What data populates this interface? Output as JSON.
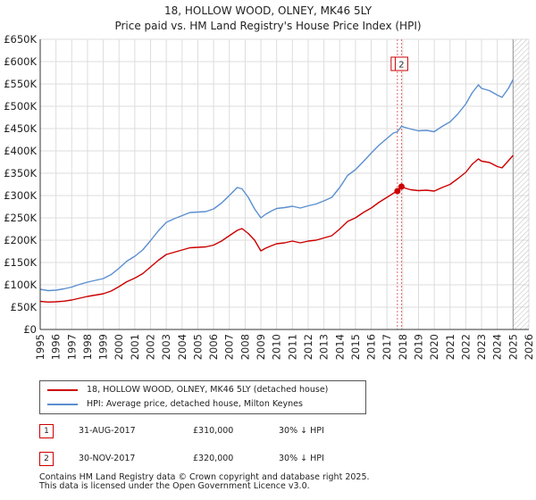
{
  "title_line1": "18, HOLLOW WOOD, OLNEY, MK46 5LY",
  "title_line2": "Price paid vs. HM Land Registry's House Price Index (HPI)",
  "chart_data": {
    "type": "line",
    "xlim": [
      1995,
      2026
    ],
    "ylim": [
      0,
      650000
    ],
    "y_ticks": [
      0,
      50000,
      100000,
      150000,
      200000,
      250000,
      300000,
      350000,
      400000,
      450000,
      500000,
      550000,
      600000,
      650000
    ],
    "y_tick_labels": [
      "£0",
      "£50K",
      "£100K",
      "£150K",
      "£200K",
      "£250K",
      "£300K",
      "£350K",
      "£400K",
      "£450K",
      "£500K",
      "£550K",
      "£600K",
      "£650K"
    ],
    "x_ticks": [
      1995,
      1996,
      1997,
      1998,
      1999,
      2000,
      2001,
      2002,
      2003,
      2004,
      2005,
      2006,
      2007,
      2008,
      2009,
      2010,
      2011,
      2012,
      2013,
      2014,
      2015,
      2016,
      2017,
      2018,
      2019,
      2020,
      2021,
      2022,
      2023,
      2024,
      2025,
      2026
    ],
    "x_tick_labels": [
      "1995",
      "1996",
      "1997",
      "1998",
      "1999",
      "2000",
      "2001",
      "2002",
      "2003",
      "2004",
      "2005",
      "2006",
      "2007",
      "2008",
      "2009",
      "2010",
      "2011",
      "2012",
      "2013",
      "2014",
      "2015",
      "2016",
      "2017",
      "2018",
      "2019",
      "2020",
      "2021",
      "2022",
      "2023",
      "2024",
      "2025",
      "2026"
    ],
    "grid": true,
    "hatch_from": 2025.0,
    "series": [
      {
        "name": "18, HOLLOW WOOD, OLNEY, MK46 5LY (detached house)",
        "color": "#cc0000",
        "x": [
          1995.0,
          1995.5,
          1996.0,
          1996.5,
          1997.0,
          1997.5,
          1998.0,
          1998.5,
          1999.0,
          1999.5,
          2000.0,
          2000.5,
          2001.0,
          2001.5,
          2002.0,
          2002.5,
          2003.0,
          2003.5,
          2004.0,
          2004.5,
          2005.0,
          2005.5,
          2006.0,
          2006.5,
          2007.0,
          2007.5,
          2007.8,
          2008.2,
          2008.6,
          2009.0,
          2009.3,
          2009.7,
          2010.0,
          2010.5,
          2011.0,
          2011.5,
          2012.0,
          2012.5,
          2013.0,
          2013.5,
          2014.0,
          2014.5,
          2015.0,
          2015.5,
          2016.0,
          2016.5,
          2017.0,
          2017.4,
          2017.66,
          2017.92,
          2018.2,
          2018.5,
          2019.0,
          2019.5,
          2020.0,
          2020.5,
          2021.0,
          2021.5,
          2022.0,
          2022.4,
          2022.8,
          2023.0,
          2023.5,
          2024.0,
          2024.3,
          2024.7,
          2025.0
        ],
        "y": [
          63000,
          61500,
          62000,
          63500,
          66000,
          70000,
          74000,
          77000,
          80000,
          86000,
          96000,
          107000,
          115000,
          125000,
          140000,
          155000,
          168000,
          173000,
          178000,
          183000,
          184000,
          185000,
          189000,
          198000,
          210000,
          222000,
          226000,
          215000,
          200000,
          176000,
          182000,
          188000,
          192000,
          194000,
          198000,
          194000,
          198000,
          200000,
          205000,
          210000,
          225000,
          242000,
          250000,
          262000,
          272000,
          285000,
          296000,
          305000,
          310000,
          320000,
          316000,
          313000,
          311000,
          312000,
          310000,
          318000,
          325000,
          338000,
          352000,
          370000,
          382000,
          377000,
          374000,
          365000,
          362000,
          378000,
          390000
        ]
      },
      {
        "name": "HPI: Average price, detached house, Milton Keynes",
        "color": "#5b8fd0",
        "x": [
          1995.0,
          1995.5,
          1996.0,
          1996.5,
          1997.0,
          1997.5,
          1998.0,
          1998.5,
          1999.0,
          1999.5,
          2000.0,
          2000.5,
          2001.0,
          2001.5,
          2002.0,
          2002.5,
          2003.0,
          2003.5,
          2004.0,
          2004.5,
          2005.0,
          2005.5,
          2006.0,
          2006.5,
          2007.0,
          2007.5,
          2007.8,
          2008.2,
          2008.6,
          2009.0,
          2009.3,
          2009.7,
          2010.0,
          2010.5,
          2011.0,
          2011.5,
          2012.0,
          2012.5,
          2013.0,
          2013.5,
          2014.0,
          2014.5,
          2015.0,
          2015.5,
          2016.0,
          2016.5,
          2017.0,
          2017.4,
          2017.66,
          2017.92,
          2018.2,
          2018.5,
          2019.0,
          2019.5,
          2020.0,
          2020.5,
          2021.0,
          2021.5,
          2022.0,
          2022.4,
          2022.8,
          2023.0,
          2023.5,
          2024.0,
          2024.3,
          2024.7,
          2025.0
        ],
        "y": [
          90000,
          87000,
          88000,
          91000,
          95000,
          101000,
          106000,
          110000,
          114000,
          123000,
          137000,
          153000,
          164000,
          178000,
          199000,
          221000,
          240000,
          248000,
          255000,
          262000,
          263000,
          264000,
          270000,
          283000,
          300000,
          318000,
          315000,
          296000,
          270000,
          250000,
          258000,
          266000,
          271000,
          273000,
          276000,
          272000,
          277000,
          281000,
          288000,
          296000,
          318000,
          345000,
          358000,
          376000,
          395000,
          413000,
          428000,
          440000,
          443000,
          455000,
          452000,
          449000,
          445000,
          446000,
          443000,
          455000,
          465000,
          483000,
          505000,
          530000,
          548000,
          540000,
          535000,
          525000,
          520000,
          540000,
          560000
        ]
      }
    ],
    "markers": [
      {
        "label": "1",
        "x": 2017.66,
        "value": 310000
      },
      {
        "label": "2",
        "x": 2017.92,
        "value": 320000
      }
    ]
  },
  "legend": [
    {
      "label": "18, HOLLOW WOOD, OLNEY, MK46 5LY (detached house)",
      "color": "#cc0000"
    },
    {
      "label": "HPI: Average price, detached house, Milton Keynes",
      "color": "#5b8fd0"
    }
  ],
  "transactions": [
    {
      "num": "1",
      "date": "31-AUG-2017",
      "price": "£310,000",
      "hpi": "30% ↓ HPI"
    },
    {
      "num": "2",
      "date": "30-NOV-2017",
      "price": "£320,000",
      "hpi": "30% ↓ HPI"
    }
  ],
  "footer_line1": "Contains HM Land Registry data © Crown copyright and database right 2025.",
  "footer_line2": "This data is licensed under the Open Government Licence v3.0."
}
